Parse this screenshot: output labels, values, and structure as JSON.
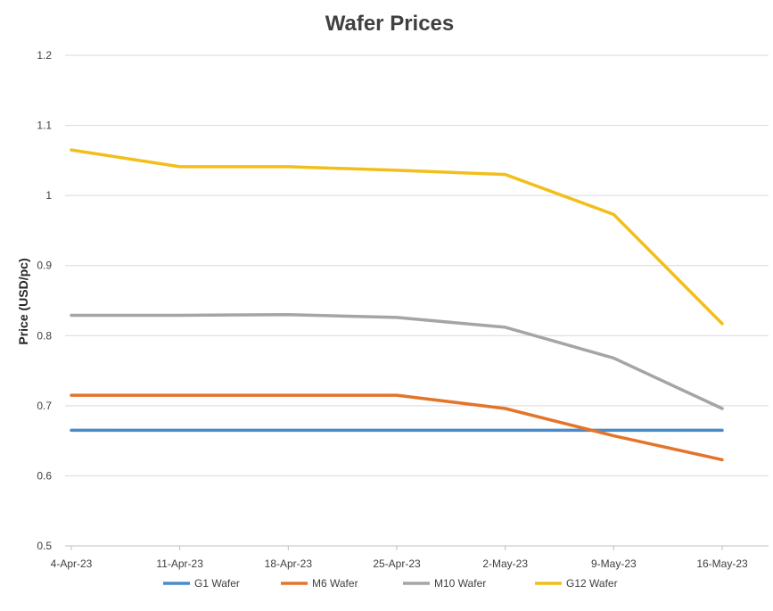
{
  "chart_data": {
    "type": "line",
    "title": "Wafer Prices",
    "xlabel": "",
    "ylabel": "Price (USD/pc)",
    "categories": [
      "4-Apr-23",
      "11-Apr-23",
      "18-Apr-23",
      "25-Apr-23",
      "2-May-23",
      "9-May-23",
      "16-May-23"
    ],
    "ylim": [
      0.5,
      1.2
    ],
    "yticks": [
      "0.5",
      "0.6",
      "0.7",
      "0.8",
      "0.9",
      "1",
      "1.1",
      "1.2"
    ],
    "grid": true,
    "legend_position": "bottom",
    "series": [
      {
        "name": "G1 Wafer",
        "color": "#4A8CC9",
        "values": [
          0.665,
          0.665,
          0.665,
          0.665,
          0.665,
          0.665,
          0.665
        ]
      },
      {
        "name": "M6 Wafer",
        "color": "#E3752B",
        "values": [
          0.715,
          0.715,
          0.715,
          0.715,
          0.696,
          0.657,
          0.623
        ]
      },
      {
        "name": "M10 Wafer",
        "color": "#A5A5A5",
        "values": [
          0.829,
          0.829,
          0.83,
          0.826,
          0.812,
          0.768,
          0.696
        ]
      },
      {
        "name": "G12 Wafer",
        "color": "#F2BE1A",
        "values": [
          1.065,
          1.041,
          1.041,
          1.036,
          1.03,
          0.973,
          0.817
        ]
      }
    ]
  }
}
